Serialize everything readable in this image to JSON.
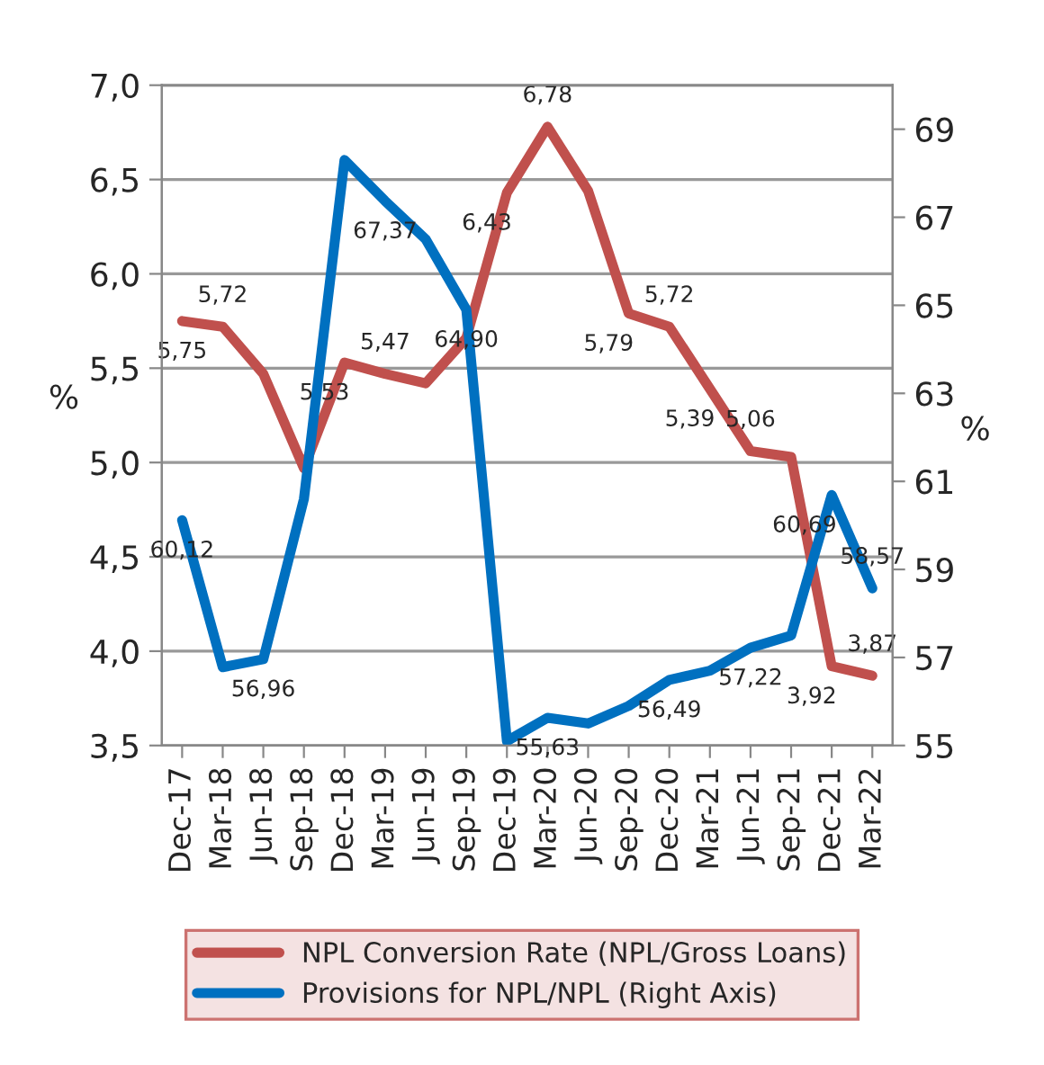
{
  "chart_data": {
    "type": "line",
    "categories": [
      "Dec-17",
      "Mar-18",
      "Jun-18",
      "Sep-18",
      "Dec-18",
      "Mar-19",
      "Jun-19",
      "Sep-19",
      "Dec-19",
      "Mar-20",
      "Jun-20",
      "Sep-20",
      "Dec-20",
      "Mar-21",
      "Jun-21",
      "Sep-21",
      "Dec-21",
      "Mar-22"
    ],
    "ylabel": "%",
    "y2label": "%",
    "ylim": [
      3.5,
      7.0
    ],
    "yticks": [
      {
        "value": 3.5,
        "label": "3,5"
      },
      {
        "value": 4.0,
        "label": "4,0"
      },
      {
        "value": 4.5,
        "label": "4,5"
      },
      {
        "value": 5.0,
        "label": "5,0"
      },
      {
        "value": 5.5,
        "label": "5,5"
      },
      {
        "value": 6.0,
        "label": "6,0"
      },
      {
        "value": 6.5,
        "label": "6,5"
      },
      {
        "value": 7.0,
        "label": "7,0"
      }
    ],
    "y2lim": [
      55,
      70
    ],
    "y2ticks": [
      55,
      57,
      59,
      61,
      63,
      65,
      67,
      69
    ],
    "grid": "y",
    "legend": "bottom",
    "marker": "none",
    "line_style": "solid",
    "series": [
      {
        "name": "NPL Conversion Rate (NPL/Gross Loans)",
        "color": "#c0504d",
        "values": [
          5.75,
          5.72,
          5.47,
          4.97,
          5.53,
          5.47,
          5.42,
          5.66,
          6.43,
          6.78,
          6.44,
          5.79,
          5.72,
          5.39,
          5.06,
          5.03,
          3.92,
          3.87
        ],
        "value_labels": [
          "5,75",
          "5,72",
          null,
          null,
          "5,53",
          "5,47",
          null,
          null,
          "6,43",
          "6,78",
          null,
          "5,79",
          "5,72",
          "5,39",
          "5,06",
          null,
          "3,92",
          "3,87"
        ]
      },
      {
        "name": "Provisions for NPL/NPL (Right Axis)",
        "color": "#0070c0",
        "axis": "y2",
        "values": [
          60.12,
          56.78,
          56.96,
          60.6,
          68.3,
          67.37,
          66.5,
          64.9,
          55.1,
          55.63,
          55.5,
          55.9,
          56.49,
          56.7,
          57.22,
          57.5,
          60.69,
          58.57
        ],
        "value_labels": [
          "60,12",
          null,
          "56,96",
          null,
          null,
          "67,37",
          null,
          "64,90",
          null,
          "55,63",
          null,
          null,
          "56,49",
          null,
          "57,22",
          null,
          "60,69",
          "58,57"
        ]
      }
    ]
  }
}
